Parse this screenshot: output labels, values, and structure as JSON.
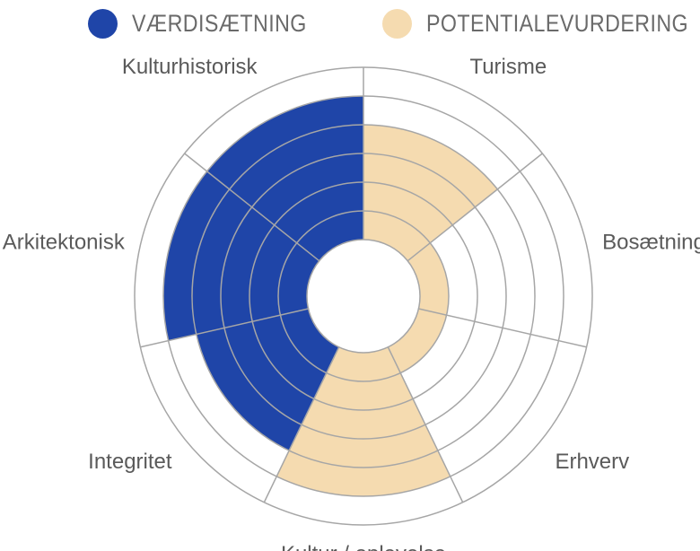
{
  "colors": {
    "vaerdi": "#1f45a8",
    "potentiale": "#f5dbb0",
    "grid": "#a6a6a6"
  },
  "chart_data": {
    "type": "radial-bar",
    "legend_position": "top",
    "series": [
      {
        "name": "VÆRDISÆTNING",
        "color": "#1f45a8"
      },
      {
        "name": "POTENTIALEVURDERING",
        "color": "#f5dbb0"
      }
    ],
    "scale": {
      "min": 0,
      "max": 6,
      "gridlines": [
        1,
        2,
        3,
        4,
        5,
        6
      ]
    },
    "categories": [
      {
        "label": "Turisme",
        "series": "POTENTIALEVURDERING",
        "value": 4
      },
      {
        "label": "Bosætning",
        "series": "POTENTIALEVURDERING",
        "value": 1
      },
      {
        "label": "Erhverv",
        "series": "POTENTIALEVURDERING",
        "value": 1
      },
      {
        "label": "Kultur / oplevelse",
        "series": "POTENTIALEVURDERING",
        "value": 5
      },
      {
        "label": "Integritet",
        "series": "VÆRDISÆTNING",
        "value": 4
      },
      {
        "label": "Arkitektonisk",
        "series": "VÆRDISÆTNING",
        "value": 5
      },
      {
        "label": "Kulturhistorisk",
        "series": "VÆRDISÆTNING",
        "value": 5
      }
    ]
  }
}
